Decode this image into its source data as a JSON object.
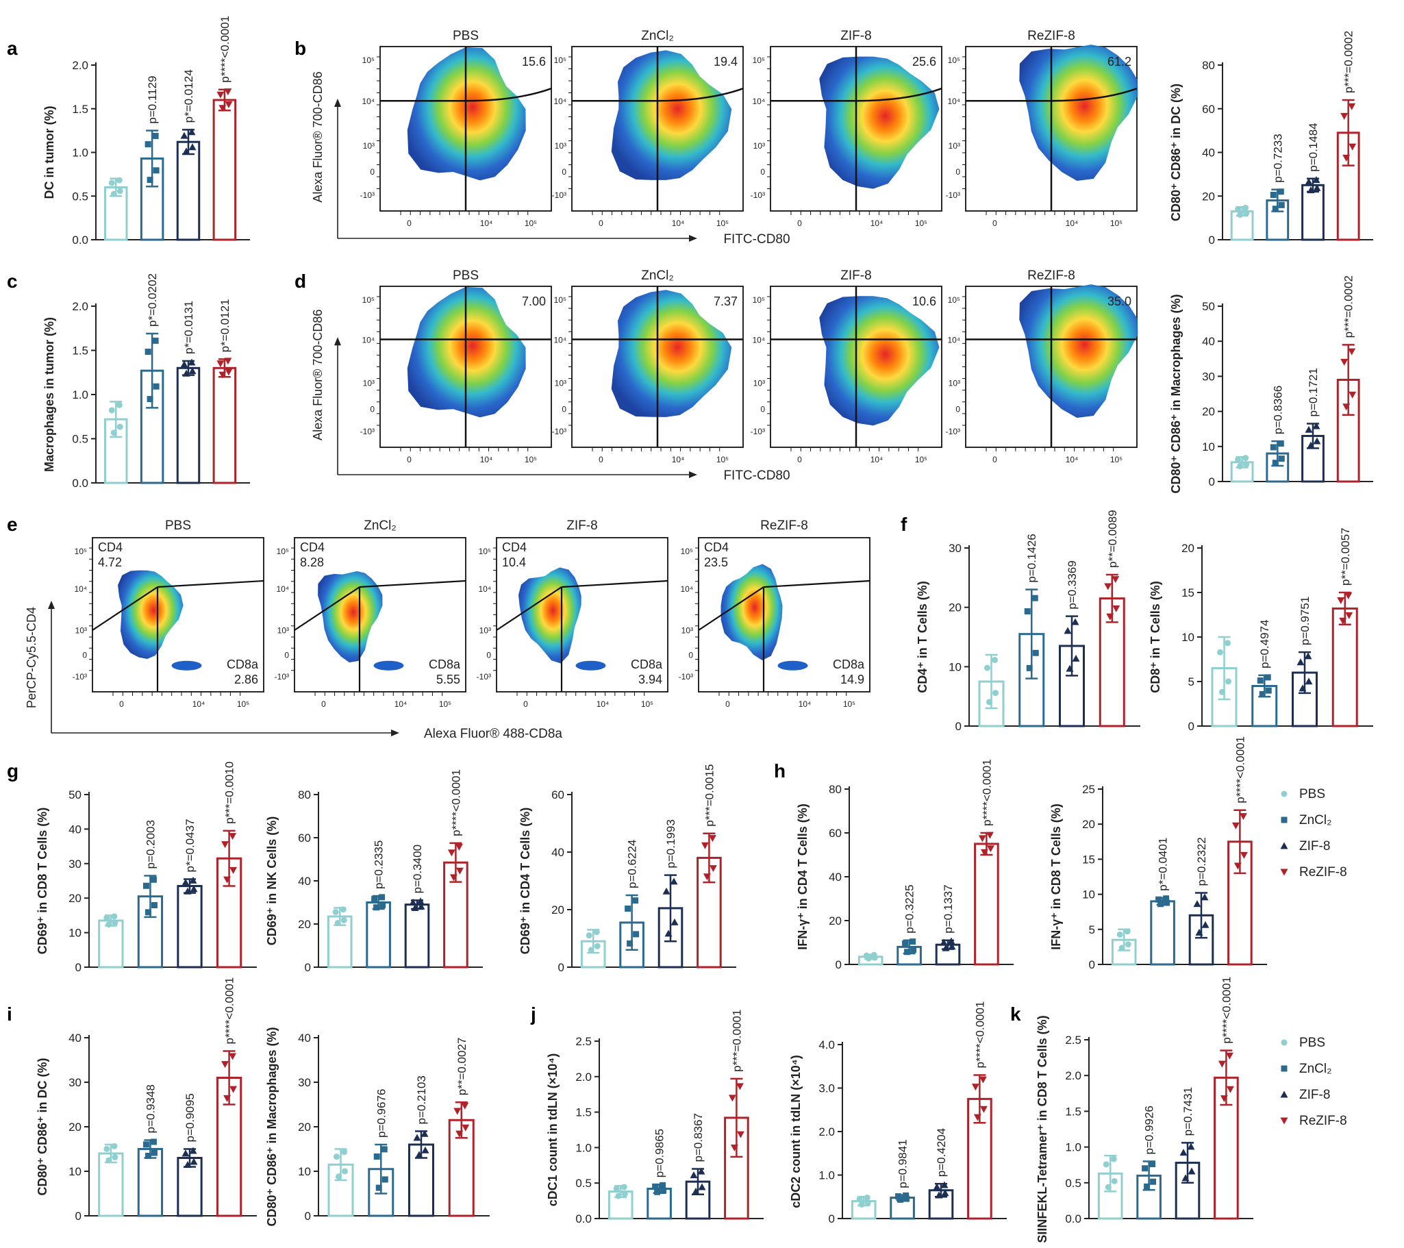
{
  "colors": {
    "PBS": "#8fcfcf",
    "ZnCl2": "#2a6a8e",
    "ZIF-8": "#1c2f52",
    "ReZIF-8": "#b0222a"
  },
  "legend": {
    "labels": [
      "PBS",
      "ZnCl₂",
      "ZIF-8",
      "ReZIF-8"
    ]
  },
  "flow_titles": [
    "PBS",
    "ZnCl₂",
    "ZIF-8",
    "ReZIF-8"
  ],
  "chart_data": [
    {
      "id": "a",
      "type": "bar",
      "ylabel": "DC in tumor (%)",
      "ylim": [
        0,
        2.0
      ],
      "yticks": [
        "0.0",
        "0.5",
        "1.0",
        "1.5",
        "2.0"
      ],
      "values": [
        0.6,
        0.93,
        1.12,
        1.6
      ],
      "errors": [
        0.1,
        0.32,
        0.14,
        0.12
      ],
      "pvals": [
        "",
        "p=0.1129",
        "p*=0.0124",
        "p****<0.0001"
      ]
    },
    {
      "id": "b",
      "type": "flow",
      "panel_label": "b",
      "xlabel": "FITC-CD80",
      "ylabel": "Alexa Fluor® 700-CD86",
      "quadrant_values": [
        "15.6",
        "19.4",
        "25.6",
        "61.2"
      ]
    },
    {
      "id": "b2",
      "type": "bar",
      "ylabel": "CD80⁺ CD86⁺ in DC (%)",
      "ylim": [
        0,
        80
      ],
      "yticks": [
        "0",
        "20",
        "40",
        "60",
        "80"
      ],
      "values": [
        13,
        18,
        25,
        49
      ],
      "errors": [
        2,
        5,
        3,
        15
      ],
      "pvals": [
        "",
        "p=0.7233",
        "p=0.1484",
        "p***=0.0002"
      ]
    },
    {
      "id": "c",
      "type": "bar",
      "ylabel": "Macrophages in tumor (%)",
      "ylim": [
        0,
        2.0
      ],
      "yticks": [
        "0.0",
        "0.5",
        "1.0",
        "1.5",
        "2.0"
      ],
      "values": [
        0.72,
        1.27,
        1.3,
        1.3
      ],
      "errors": [
        0.2,
        0.42,
        0.08,
        0.1
      ],
      "pvals": [
        "",
        "p*=0.0202",
        "p*=0.0131",
        "p*=0.0121"
      ]
    },
    {
      "id": "d",
      "type": "flow",
      "panel_label": "d",
      "xlabel": "FITC-CD80",
      "ylabel": "Alexa Fluor® 700-CD86",
      "quadrant_values": [
        "7.00",
        "7.37",
        "10.6",
        "35.0"
      ]
    },
    {
      "id": "d2",
      "type": "bar",
      "ylabel": "CD80⁺ CD86⁺ in Macrophages (%)",
      "ylim": [
        0,
        50
      ],
      "yticks": [
        "0",
        "10",
        "20",
        "30",
        "40",
        "50"
      ],
      "values": [
        5.5,
        8,
        13,
        29
      ],
      "errors": [
        1.5,
        3.5,
        3.5,
        10
      ],
      "pvals": [
        "",
        "p=0.8366",
        "p=0.1721",
        "p***=0.0002"
      ]
    },
    {
      "id": "e",
      "type": "flow",
      "panel_label": "e",
      "xlabel": "Alexa Fluor® 488-CD8a",
      "ylabel": "PerCP-Cy5.5-CD4",
      "cd4_values": [
        "4.72",
        "8.28",
        "10.4",
        "23.5"
      ],
      "cd8_values": [
        "2.86",
        "5.55",
        "3.94",
        "14.9"
      ],
      "cd4_label": "CD4",
      "cd8_label": "CD8a"
    },
    {
      "id": "f1",
      "type": "bar",
      "ylabel": "CD4⁺ in T Cells (%)",
      "ylim": [
        0,
        30
      ],
      "yticks": [
        "0",
        "10",
        "20",
        "30"
      ],
      "values": [
        7.5,
        15.5,
        13.5,
        21.5
      ],
      "errors": [
        4.5,
        7.5,
        5,
        4
      ],
      "pvals": [
        "",
        "p=0.1426",
        "p=0.3369",
        "p**=0.0089"
      ]
    },
    {
      "id": "f2",
      "type": "bar",
      "ylabel": "CD8⁺ in T Cells (%)",
      "ylim": [
        0,
        20
      ],
      "yticks": [
        "0",
        "5",
        "10",
        "15",
        "20"
      ],
      "values": [
        6.5,
        4.5,
        6,
        13.2
      ],
      "errors": [
        3.5,
        1.2,
        2.3,
        1.8
      ],
      "pvals": [
        "",
        "p=0.4974",
        "p=0.9751",
        "p**=0.0057"
      ]
    },
    {
      "id": "g1",
      "type": "bar",
      "ylabel": "CD69⁺ in CD8 T Cells (%)",
      "ylim": [
        0,
        50
      ],
      "yticks": [
        "0",
        "10",
        "20",
        "30",
        "40",
        "50"
      ],
      "values": [
        13.5,
        20.5,
        23.5,
        31.5
      ],
      "errors": [
        1.5,
        6,
        2,
        8
      ],
      "pvals": [
        "",
        "p=0.2003",
        "p*=0.0437",
        "p***=0.0010"
      ]
    },
    {
      "id": "g2",
      "type": "bar",
      "ylabel": "CD69⁺ in NK Cells (%)",
      "ylim": [
        0,
        80
      ],
      "yticks": [
        "0",
        "20",
        "40",
        "60",
        "80"
      ],
      "values": [
        23.5,
        30,
        29,
        48.5
      ],
      "errors": [
        4,
        3,
        2,
        9
      ],
      "pvals": [
        "",
        "p=0.2335",
        "p=0.3400",
        "p****<0.0001"
      ]
    },
    {
      "id": "g3",
      "type": "bar",
      "ylabel": "CD69⁺ in CD4 T Cells (%)",
      "ylim": [
        0,
        60
      ],
      "yticks": [
        "0",
        "20",
        "40",
        "60"
      ],
      "values": [
        9,
        15.5,
        20.5,
        38
      ],
      "errors": [
        4,
        9.5,
        11.5,
        8.5
      ],
      "pvals": [
        "",
        "p=0.6224",
        "p=0.1993",
        "p***=0.0015"
      ]
    },
    {
      "id": "h1",
      "type": "bar",
      "ylabel": "IFN-γ⁺ in CD4 T Cells (%)",
      "ylim": [
        0,
        80
      ],
      "yticks": [
        "0",
        "20",
        "40",
        "60",
        "80"
      ],
      "values": [
        3.5,
        8,
        9,
        55
      ],
      "errors": [
        1,
        3,
        2,
        5
      ],
      "pvals": [
        "",
        "p=0.3225",
        "p=0.1337",
        "p****<0.0001"
      ]
    },
    {
      "id": "h2",
      "type": "bar",
      "ylabel": "IFN-γ⁺ in CD8 T Cells (%)",
      "ylim": [
        0,
        25
      ],
      "yticks": [
        "0",
        "5",
        "10",
        "15",
        "20",
        "25"
      ],
      "values": [
        3.5,
        9,
        7,
        17.5
      ],
      "errors": [
        1.5,
        0.5,
        3.2,
        4.5
      ],
      "pvals": [
        "",
        "p*=0.0401",
        "p=0.2322",
        "p****<0.0001"
      ]
    },
    {
      "id": "i1",
      "type": "bar",
      "ylabel": "CD80⁺ CD86⁺ in DC (%)",
      "ylim": [
        0,
        40
      ],
      "yticks": [
        "0",
        "10",
        "20",
        "30",
        "40"
      ],
      "values": [
        14,
        15,
        13,
        31
      ],
      "errors": [
        2,
        2,
        2,
        6
      ],
      "pvals": [
        "",
        "p=0.9348",
        "p=0.9095",
        "p****<0.0001"
      ]
    },
    {
      "id": "i2",
      "type": "bar",
      "ylabel": "CD80⁺ CD86⁺ in Macrophages (%)",
      "ylim": [
        0,
        40
      ],
      "yticks": [
        "0",
        "10",
        "20",
        "30",
        "40"
      ],
      "values": [
        11.5,
        10.5,
        16,
        21.5
      ],
      "errors": [
        3.5,
        5.5,
        3,
        4
      ],
      "pvals": [
        "",
        "p=0.9676",
        "p=0.2103",
        "p**=0.0027"
      ]
    },
    {
      "id": "j1",
      "type": "bar",
      "ylabel": "cDC1 count in tdLN (×10⁴)",
      "ylim": [
        0,
        2.5
      ],
      "yticks": [
        "0.0",
        "0.5",
        "1.0",
        "1.5",
        "2.0",
        "2.5"
      ],
      "values": [
        0.38,
        0.42,
        0.52,
        1.42
      ],
      "errors": [
        0.08,
        0.06,
        0.18,
        0.55
      ],
      "pvals": [
        "",
        "p=0.9865",
        "p=0.8367",
        "p***=0.0001"
      ]
    },
    {
      "id": "j2",
      "type": "bar",
      "ylabel": "cDC2 count in tdLN (×10⁴)",
      "ylim": [
        0,
        4.0
      ],
      "yticks": [
        "0",
        "1.0",
        "2.0",
        "3.0",
        "4.0"
      ],
      "values": [
        0.4,
        0.48,
        0.65,
        2.75
      ],
      "errors": [
        0.1,
        0.06,
        0.15,
        0.55
      ],
      "pvals": [
        "",
        "p=0.9841",
        "p=0.4204",
        "p****<0.0001"
      ]
    },
    {
      "id": "k",
      "type": "bar",
      "ylabel": "SIINFEKL-Tetramer⁺ in CD8 T Cells (%)",
      "ylim": [
        0,
        2.5
      ],
      "yticks": [
        "0.0",
        "0.5",
        "1.0",
        "1.5",
        "2.0",
        "2.5"
      ],
      "values": [
        0.63,
        0.6,
        0.78,
        1.97
      ],
      "errors": [
        0.25,
        0.2,
        0.28,
        0.38
      ],
      "pvals": [
        "",
        "p=0.9926",
        "p=0.7431",
        "p****<0.0001"
      ]
    }
  ],
  "panel_labels": [
    "a",
    "b",
    "c",
    "d",
    "e",
    "f",
    "g",
    "h",
    "i",
    "j",
    "k"
  ]
}
